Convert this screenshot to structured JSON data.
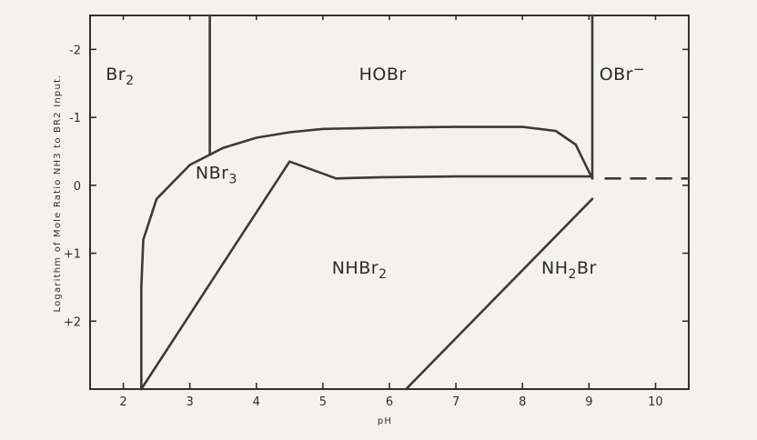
{
  "chart_data": {
    "type": "line",
    "xlabel": "pH",
    "ylabel": "Logarithm of Mole Ratio NH3 to BR2 Input.",
    "xlim": [
      1.5,
      10.5
    ],
    "ylim": [
      -2.5,
      3.0
    ],
    "y_axis_inverted": true,
    "x_ticks": [
      "2",
      "3",
      "4",
      "5",
      "6",
      "7",
      "8",
      "9",
      "10"
    ],
    "y_ticks": [
      {
        "value": -2,
        "label": "-2"
      },
      {
        "value": -1,
        "label": "-1"
      },
      {
        "value": 0,
        "label": "0"
      },
      {
        "value": 1,
        "label": "+1"
      },
      {
        "value": 2,
        "label": "+2"
      }
    ],
    "regions": [
      {
        "name": "Br2",
        "label": "Br",
        "sub": "2",
        "sup": "",
        "ph": 1.95,
        "ratio": -1.55
      },
      {
        "name": "HOBr",
        "label": "HOBr",
        "sub": "",
        "sup": "",
        "ph": 5.9,
        "ratio": -1.55
      },
      {
        "name": "OBr-",
        "label": "OBr",
        "sub": "",
        "sup": "−",
        "ph": 9.5,
        "ratio": -1.55
      },
      {
        "name": "NBr3",
        "label": "NBr",
        "sub": "3",
        "sup": "",
        "ph": 3.4,
        "ratio": -0.1
      },
      {
        "name": "NHBr2",
        "label": "NHBr",
        "sub": "2",
        "sup": "",
        "ph": 5.55,
        "ratio": 1.3
      },
      {
        "name": "NH2Br",
        "label": "NH",
        "sub": "2",
        "tail": "Br",
        "sup": "",
        "ph": 8.7,
        "ratio": 1.3
      }
    ],
    "boundaries": [
      {
        "name": "Br2-HOBr",
        "points": [
          [
            3.3,
            -2.5
          ],
          [
            3.3,
            -0.45
          ]
        ]
      },
      {
        "name": "HOBr-OBr-",
        "points": [
          [
            9.05,
            -2.5
          ],
          [
            9.05,
            -0.1
          ]
        ]
      },
      {
        "name": "NBr3-upper",
        "points": [
          [
            2.27,
            3.0
          ],
          [
            2.27,
            1.5
          ],
          [
            2.3,
            0.8
          ],
          [
            2.5,
            0.2
          ],
          [
            3.0,
            -0.3
          ],
          [
            3.5,
            -0.55
          ],
          [
            4.0,
            -0.7
          ],
          [
            4.5,
            -0.78
          ],
          [
            5.0,
            -0.83
          ],
          [
            6.0,
            -0.85
          ],
          [
            7.0,
            -0.86
          ],
          [
            8.0,
            -0.86
          ],
          [
            8.5,
            -0.8
          ],
          [
            8.8,
            -0.6
          ],
          [
            9.0,
            -0.2
          ],
          [
            9.05,
            -0.1
          ]
        ]
      },
      {
        "name": "NBr3-NHBr2",
        "points": [
          [
            2.27,
            3.0
          ],
          [
            3.5,
            1.15
          ],
          [
            4.5,
            -0.35
          ],
          [
            5.2,
            -0.1
          ],
          [
            5.9,
            -0.12
          ],
          [
            7.0,
            -0.13
          ],
          [
            8.0,
            -0.13
          ],
          [
            9.05,
            -0.13
          ]
        ]
      },
      {
        "name": "NHBr2-NH2Br",
        "points": [
          [
            6.25,
            3.0
          ],
          [
            9.05,
            0.2
          ]
        ]
      },
      {
        "name": "extension",
        "dashed": true,
        "points": [
          [
            9.25,
            -0.1
          ],
          [
            10.5,
            -0.1
          ]
        ]
      }
    ]
  }
}
